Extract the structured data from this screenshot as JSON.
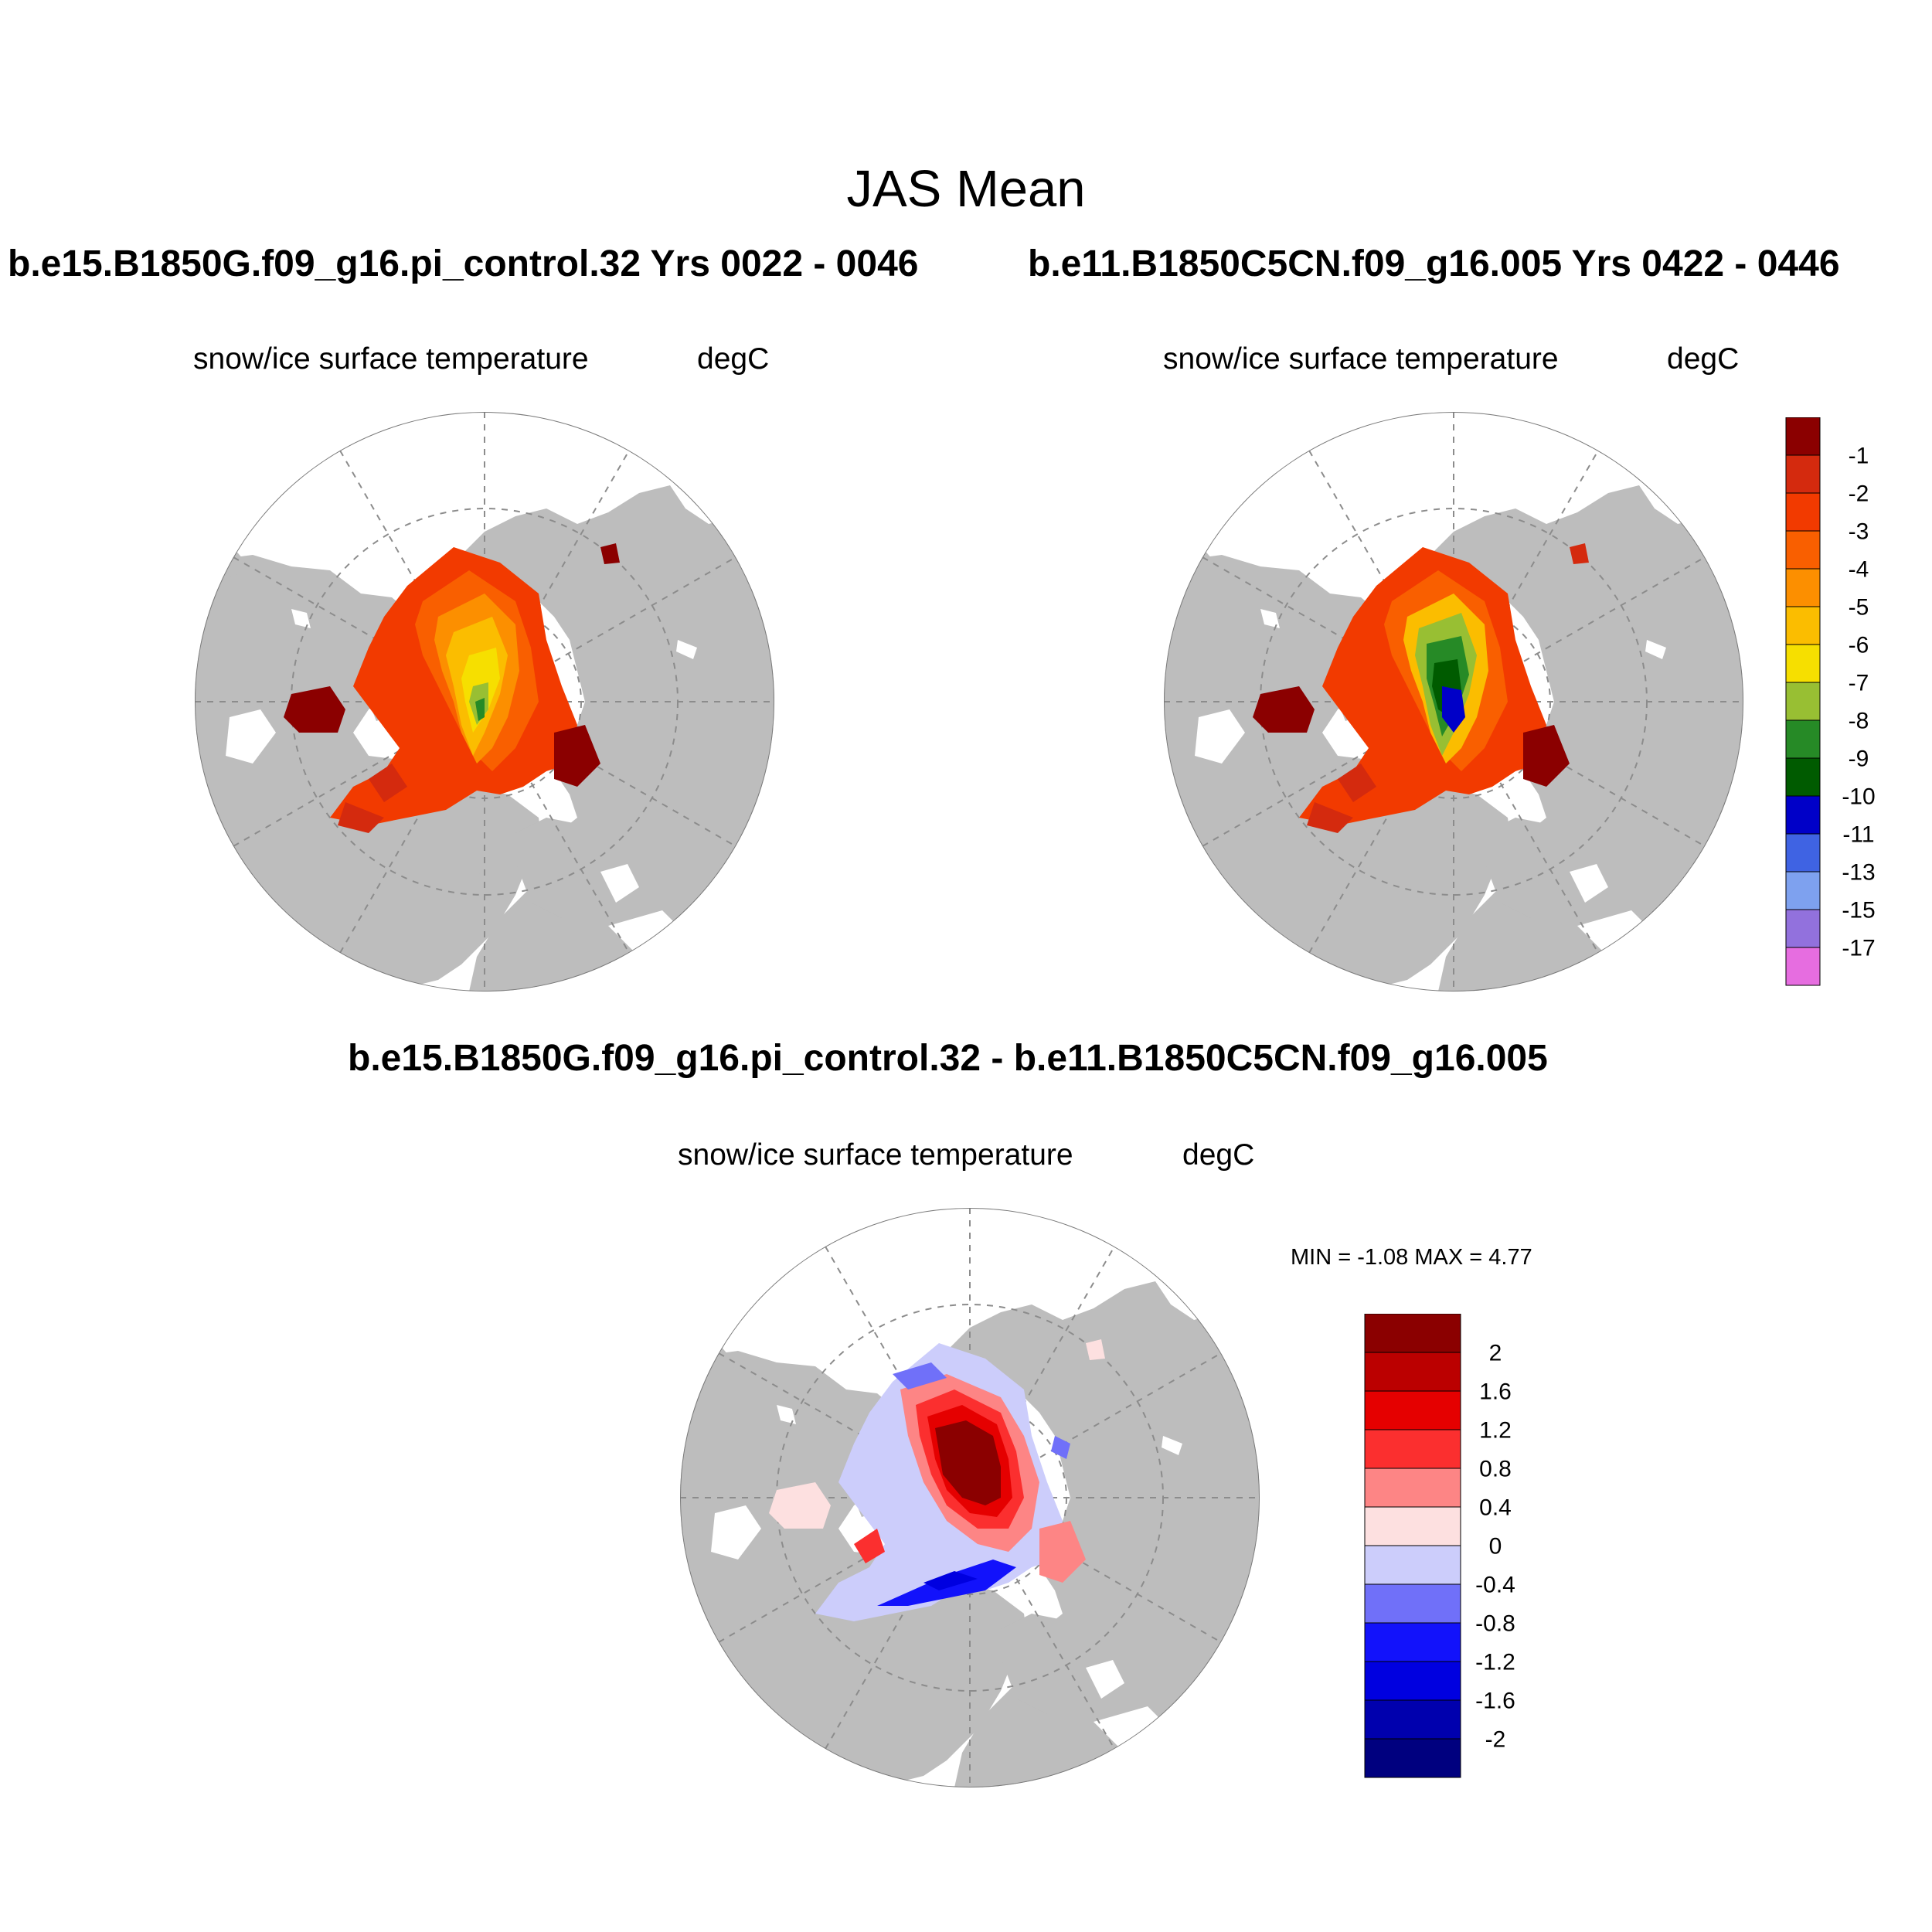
{
  "figure": {
    "title": "JAS Mean"
  },
  "panels": [
    {
      "id": "left",
      "title": "b.e15.B1850G.f09_g16.pi_control.32  Yrs 0022 - 0046",
      "variable": "snow/ice surface temperature",
      "units": "degC"
    },
    {
      "id": "right",
      "title": "b.e11.B1850C5CN.f09_g16.005  Yrs 0422 - 0446",
      "variable": "snow/ice surface temperature",
      "units": "degC"
    },
    {
      "id": "diff",
      "title": "b.e15.B1850G.f09_g16.pi_control.32 - b.e11.B1850C5CN.f09_g16.005",
      "variable": "snow/ice surface temperature",
      "units": "degC",
      "minmax": "MIN =  -1.08 MAX =   4.77"
    }
  ],
  "colorbar_abs": {
    "labels": [
      "-1",
      "-2",
      "-3",
      "-4",
      "-5",
      "-6",
      "-7",
      "-8",
      "-9",
      "-10",
      "-11",
      "-13",
      "-15",
      "-17"
    ],
    "colors": [
      "#8b0000",
      "#d42a0e",
      "#f23a00",
      "#f95f00",
      "#fc8f00",
      "#fbbd00",
      "#f6df00",
      "#98bf33",
      "#268a26",
      "#005b00",
      "#0000c8",
      "#3f63e3",
      "#7ea1ef",
      "#9271dd",
      "#e66de0"
    ]
  },
  "colorbar_diff": {
    "labels": [
      "2",
      "1.6",
      "1.2",
      "0.8",
      "0.4",
      "0",
      "-0.4",
      "-0.8",
      "-1.2",
      "-1.6",
      "-2"
    ],
    "colors": [
      "#8b0000",
      "#bb0000",
      "#e50000",
      "#fb2f2f",
      "#fd8585",
      "#fde0e0",
      "#cccdfb",
      "#7070f9",
      "#1212fb",
      "#0000e0",
      "#0000ae",
      "#00007f"
    ]
  },
  "map_colors": {
    "land": "#bdbdbd",
    "ocean": "#ffffff",
    "grid": "#8c8c8c"
  }
}
